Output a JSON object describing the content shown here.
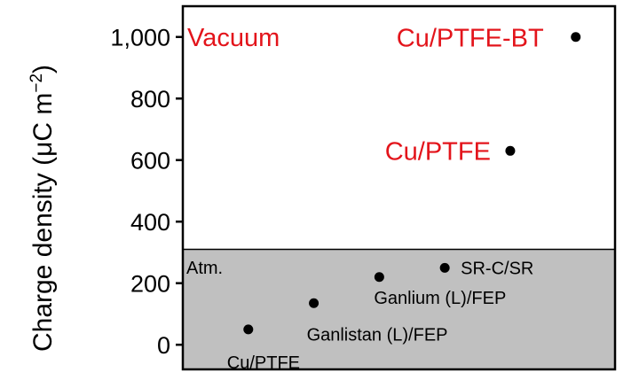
{
  "chart_data": {
    "type": "scatter",
    "title": "",
    "xlabel": "",
    "ylabel_main": "Charge density (μC m",
    "ylabel_sup": "−2",
    "ylabel_close": ")",
    "ylim": [
      -80,
      1100
    ],
    "yticks": [
      0,
      200,
      400,
      600,
      800,
      1000
    ],
    "ytick_labels": [
      "0",
      "200",
      "400",
      "600",
      "800",
      "1,000"
    ],
    "grid": false,
    "regions": [
      {
        "name": "Vacuum",
        "y_range": [
          310,
          1100
        ],
        "color": "#ffffff"
      },
      {
        "name": "Atm.",
        "y_range": [
          -80,
          310
        ],
        "color": "#c0c0c0"
      }
    ],
    "points": [
      {
        "label": "Cu/PTFE",
        "x": 1,
        "y": 50,
        "region": "Atm."
      },
      {
        "label": "Ganlistan (L)/FEP",
        "x": 2,
        "y": 135,
        "region": "Atm."
      },
      {
        "label": "Ganlium (L)/FEP",
        "x": 3,
        "y": 220,
        "region": "Atm."
      },
      {
        "label": "SR-C/SR",
        "x": 4,
        "y": 250,
        "region": "Atm."
      },
      {
        "label": "Cu/PTFE",
        "x": 5,
        "y": 630,
        "region": "Vacuum"
      },
      {
        "label": "Cu/PTFE-BT",
        "x": 6,
        "y": 1000,
        "region": "Vacuum"
      }
    ],
    "xlim": [
      0,
      6.6
    ],
    "colors": {
      "vacuum_text": "#e3141b",
      "atm_region": "#c0c0c0",
      "point": "#000000"
    }
  }
}
